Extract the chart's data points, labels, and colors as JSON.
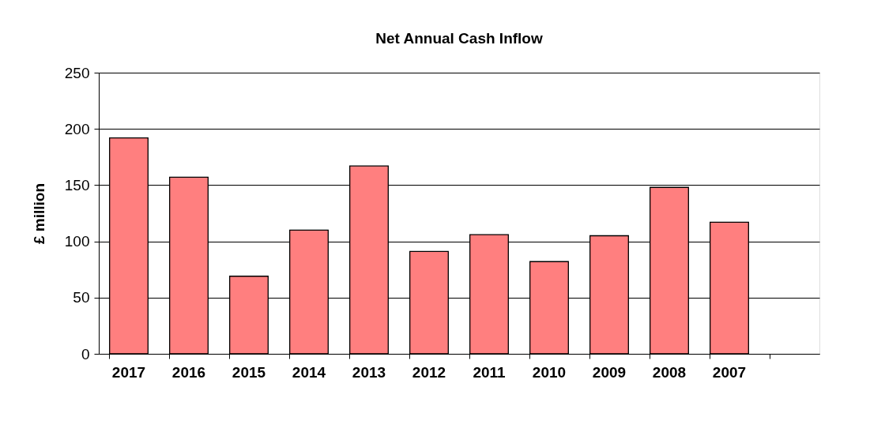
{
  "chart_data": {
    "type": "bar",
    "title": "Net Annual Cash Inflow",
    "ylabel": "£ million",
    "categories": [
      "2017",
      "2016",
      "2015",
      "2014",
      "2013",
      "2012",
      "2011",
      "2010",
      "2009",
      "2008",
      "2007",
      null
    ],
    "values": [
      192,
      157,
      69,
      110,
      167,
      91,
      106,
      82,
      105,
      148,
      117,
      null
    ],
    "color": "#ff7f7f",
    "ylim": [
      0,
      250
    ],
    "yticks": [
      0,
      50,
      100,
      150,
      200,
      250
    ],
    "grid": "y"
  }
}
